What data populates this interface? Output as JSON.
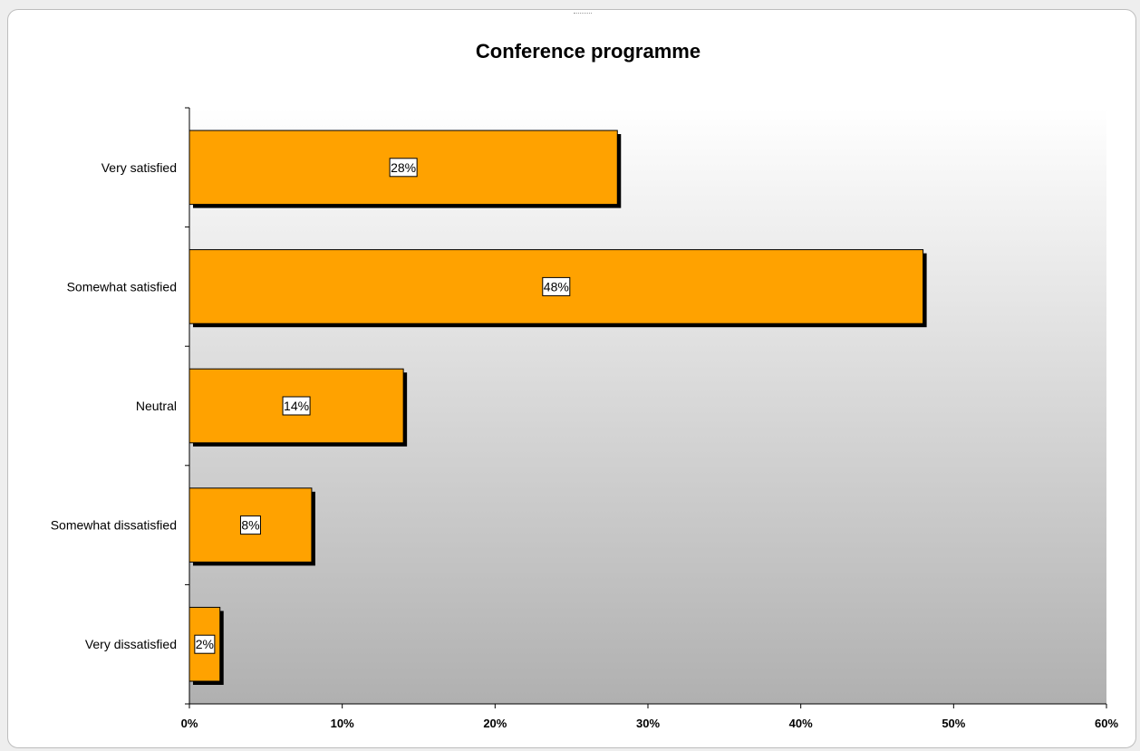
{
  "chart_data": {
    "type": "bar",
    "orientation": "horizontal",
    "title": "Conference programme",
    "xlabel": "",
    "ylabel": "",
    "categories": [
      "Very satisfied",
      "Somewhat satisfied",
      "Neutral",
      "Somewhat dissatisfied",
      "Very dissatisfied"
    ],
    "values": [
      28,
      48,
      14,
      8,
      2
    ],
    "data_labels": [
      "28%",
      "48%",
      "14%",
      "8%",
      "2%"
    ],
    "xlim": [
      0,
      60
    ],
    "x_ticks": [
      "0%",
      "10%",
      "20%",
      "30%",
      "40%",
      "50%",
      "60%"
    ],
    "grid": false,
    "legend": "none",
    "colors": {
      "bar": "#ffa200",
      "bar_shadow": "#000000",
      "plot_gradient_top": "#ffffff",
      "plot_gradient_bottom": "#b0b0b0"
    }
  }
}
